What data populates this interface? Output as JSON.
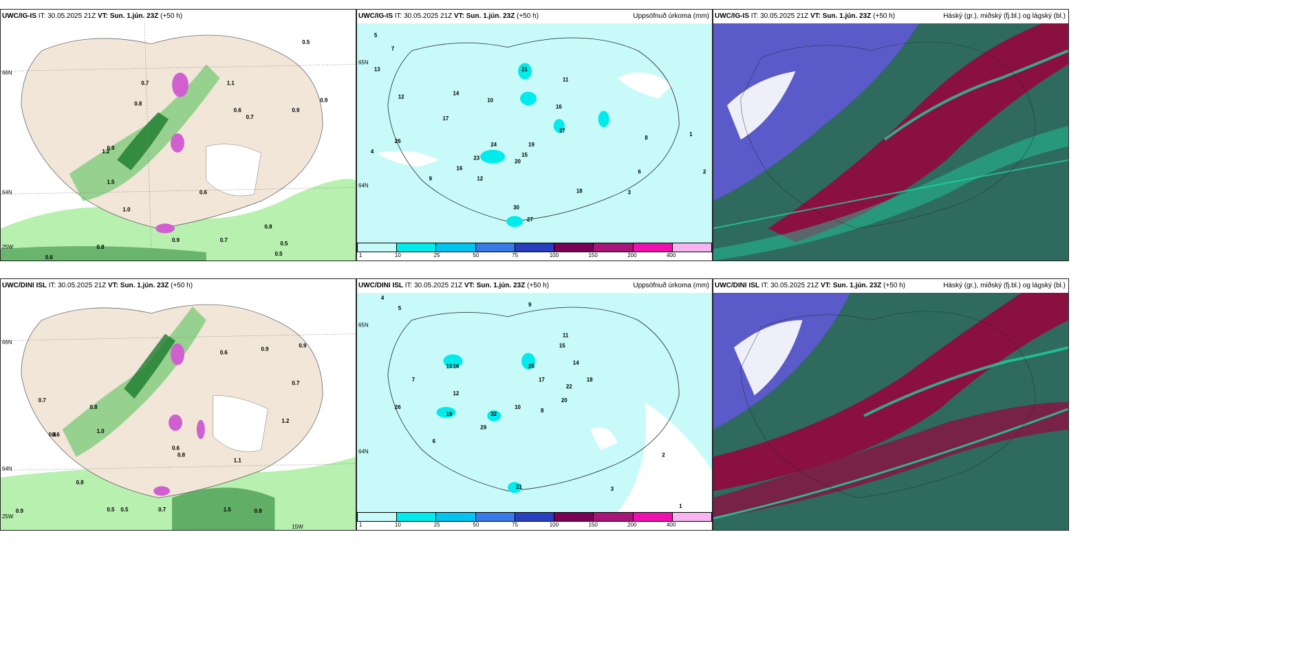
{
  "rows": [
    {
      "model": "UWC/IG-IS",
      "init": "IT: 30.05.2025 21Z",
      "valid": "VT: Sun. 1.jún. 23Z",
      "lead": "(+50 h)",
      "left_map": {
        "lat_labels": [
          "66N",
          "64N",
          "25W"
        ],
        "values": [
          "0.5",
          "0.8",
          "0.9",
          "1.0",
          "0.6",
          "0.7",
          "0.5",
          "1.1",
          "0.9",
          "0.8",
          "0.7",
          "0.6",
          "1.5",
          "1.2",
          "0.8",
          "0.9",
          "0.7",
          "0.5",
          "0.6",
          "0.9"
        ]
      },
      "mid_map": {
        "right_title": "Uppsöfnuð úrkoma (mm)",
        "lat_labels": [
          "65N",
          "64N"
        ],
        "values": [
          "5",
          "7",
          "13",
          "10",
          "12",
          "14",
          "21",
          "16",
          "17",
          "15",
          "11",
          "9",
          "6",
          "4",
          "3",
          "8",
          "26",
          "20",
          "24",
          "37",
          "19",
          "23",
          "16",
          "12",
          "18",
          "30",
          "27",
          "2",
          "1"
        ]
      },
      "right_map": {
        "right_title": "Háský (gr.), miðský (fj.bl.) og lágský (bl.)"
      }
    },
    {
      "model": "UWC/DINI ISL",
      "init": "IT: 30.05.2025 21Z",
      "valid": "VT: Sun. 1.jún. 23Z",
      "lead": "(+50 h)",
      "left_map": {
        "lat_labels": [
          "66N",
          "64N",
          "25W",
          "15W"
        ],
        "values": [
          "0.9",
          "0.6",
          "0.8",
          "1.5",
          "0.7",
          "1.0",
          "0.5",
          "0.6",
          "0.8",
          "0.9",
          "1.2",
          "0.7",
          "0.6",
          "1.1",
          "0.8",
          "0.9",
          "0.7",
          "0.5",
          "0.6",
          "0.8"
        ]
      },
      "mid_map": {
        "right_title": "Uppsöfnuð úrkoma (mm)",
        "lat_labels": [
          "65N",
          "64N"
        ],
        "values": [
          "4",
          "5",
          "9",
          "11",
          "12",
          "14",
          "16",
          "15",
          "25",
          "17",
          "22",
          "18",
          "20",
          "13",
          "10",
          "8",
          "7",
          "6",
          "3",
          "2",
          "26",
          "19",
          "32",
          "29",
          "21",
          "1"
        ]
      },
      "right_map": {
        "right_title": "Háský (gr.), miðský (fj.bl.) og lágský (bl.)"
      }
    }
  ],
  "colorbar": {
    "ticks": [
      "1",
      "10",
      "25",
      "50",
      "75",
      "100",
      "150",
      "200",
      "400"
    ],
    "colors": [
      "#c8fafa",
      "#00ebeb",
      "#00c4f0",
      "#3a7ae8",
      "#2a3fc0",
      "#7a0055",
      "#a8167a",
      "#f010b0",
      "#f8b4f0"
    ]
  },
  "colors": {
    "land": "#f2e6d8",
    "sea_rain": "#c8fafa",
    "green_light": "#b8f0b0",
    "green_mid": "#70c870",
    "green_dark": "#1a7a2a",
    "magenta": "#d060d0",
    "cloud_blue": "#5a5ac8",
    "cloud_red": "#8a1040",
    "cloud_teal": "#2e6a5e",
    "cloud_green": "#20d0a0"
  }
}
